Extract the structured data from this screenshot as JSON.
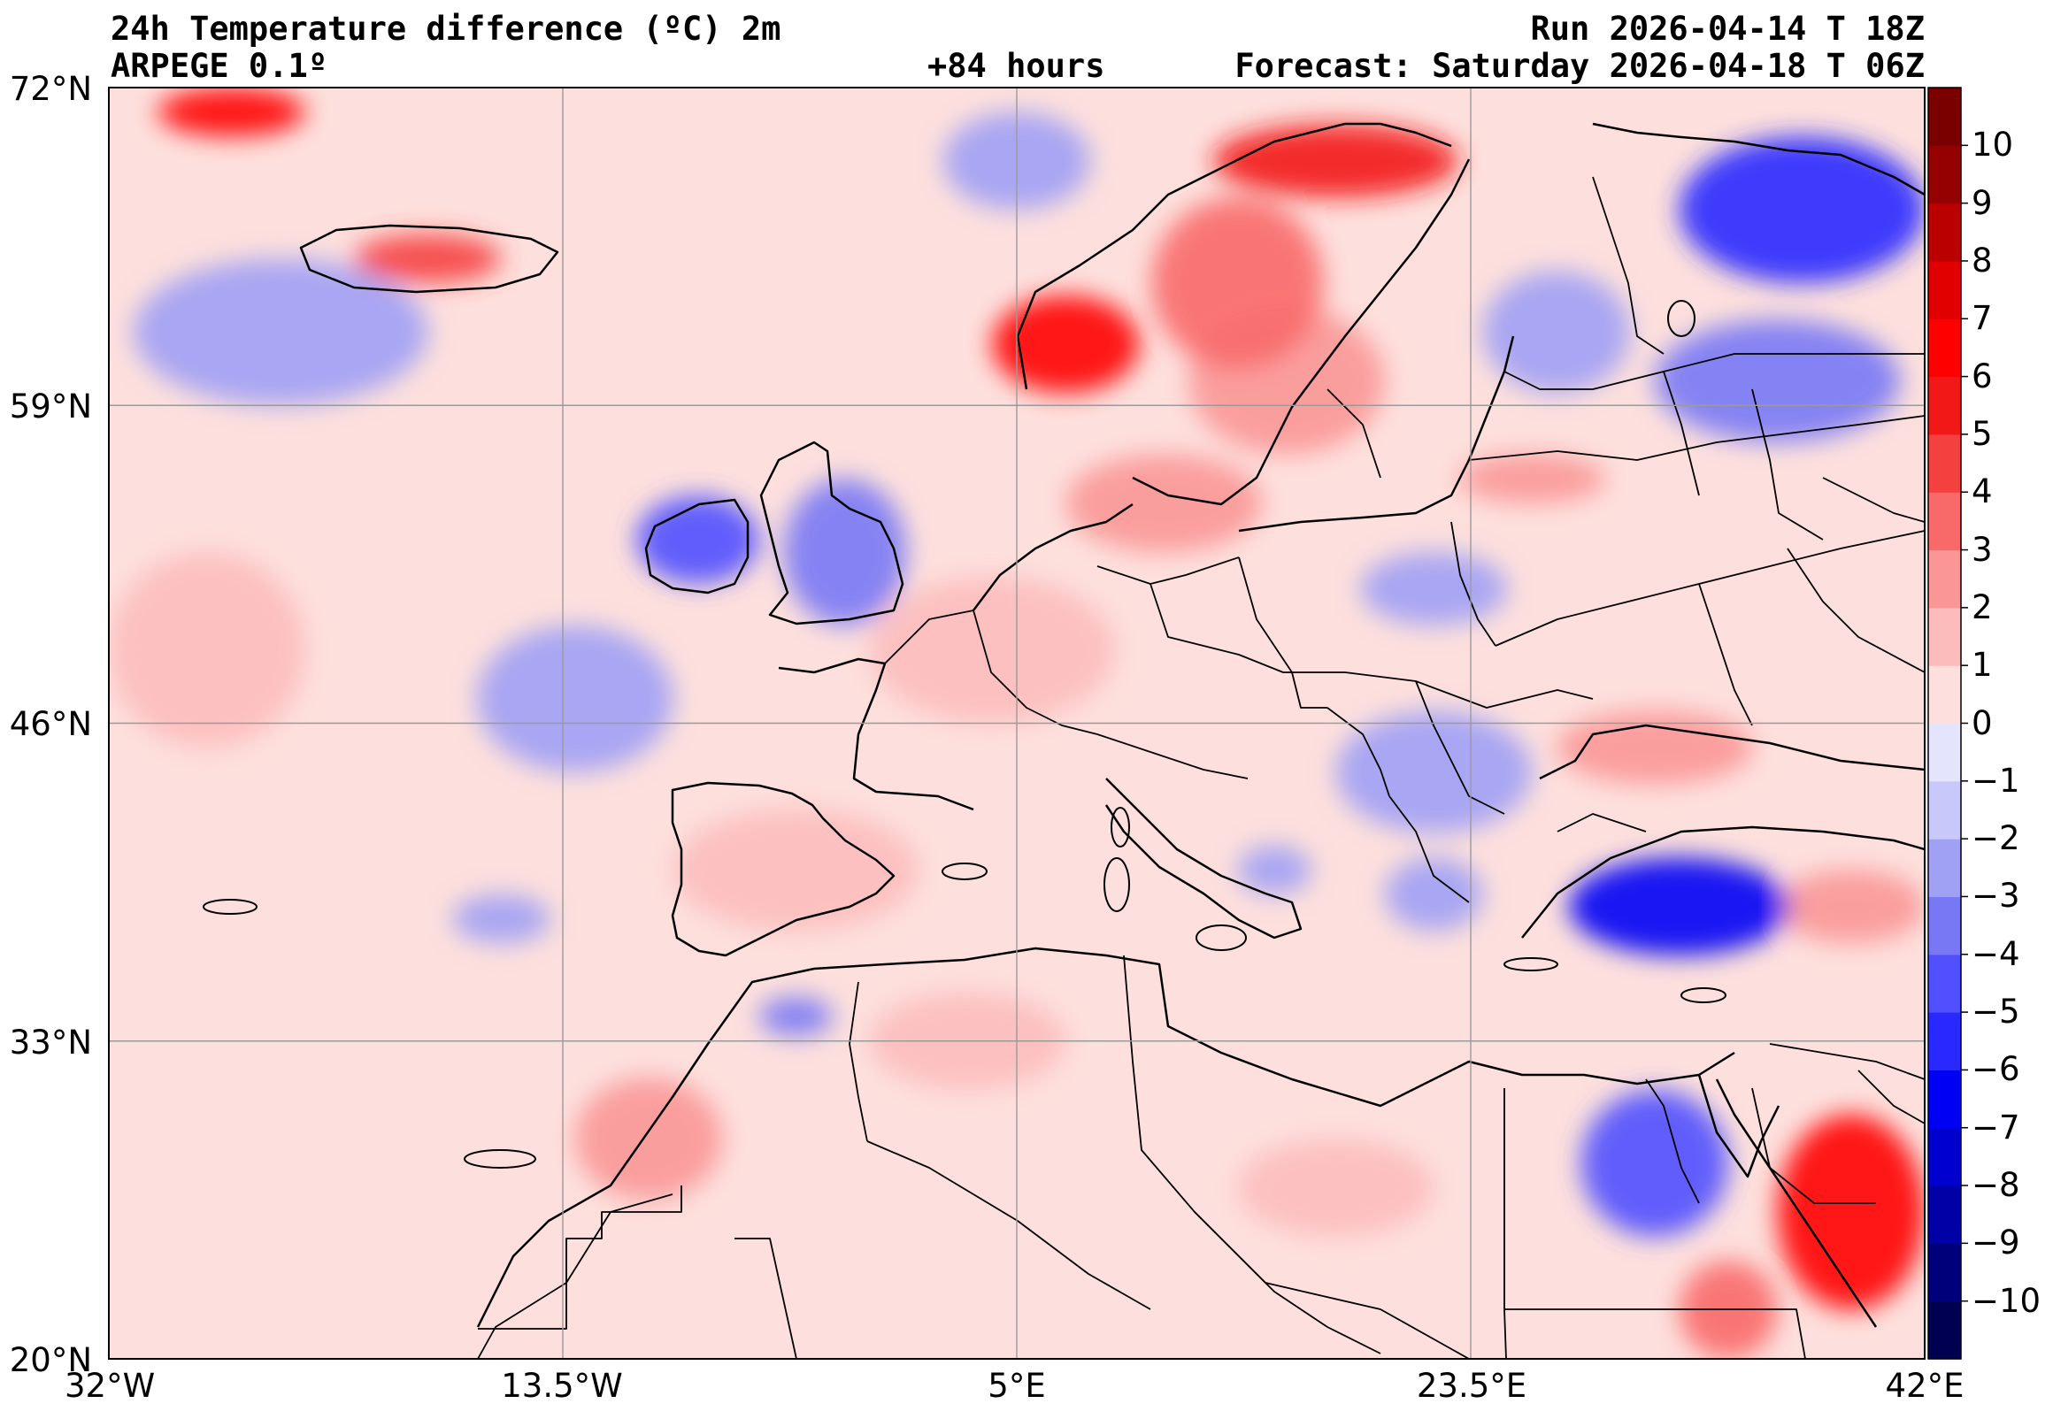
{
  "header": {
    "title": "24h Temperature difference (ºC) 2m",
    "model": "ARPEGE 0.1º",
    "lead_time": "+84 hours",
    "run": "Run 2026-04-14 T 18Z",
    "forecast": "Forecast: Saturday 2026-04-18 T 06Z"
  },
  "map": {
    "extent": {
      "lon_min": -32,
      "lon_max": 42,
      "lat_min": 20,
      "lat_max": 72
    },
    "lat_ticks": [
      {
        "value": 72,
        "label": "72°N"
      },
      {
        "value": 59,
        "label": "59°N"
      },
      {
        "value": 46,
        "label": "46°N"
      },
      {
        "value": 33,
        "label": "33°N"
      },
      {
        "value": 20,
        "label": "20°N"
      }
    ],
    "lon_ticks": [
      {
        "value": -32,
        "label": "32°W"
      },
      {
        "value": -13.5,
        "label": "13.5°W"
      },
      {
        "value": 5,
        "label": "5°E"
      },
      {
        "value": 23.5,
        "label": "23.5°E"
      },
      {
        "value": 42,
        "label": "42°E"
      }
    ],
    "gridlines": true,
    "background_color": "#fde0dd",
    "anomalies": [
      {
        "region": "Norway west coast",
        "lon": 7,
        "lat": 61.5,
        "rx": 3,
        "ry": 2,
        "level": 7
      },
      {
        "region": "Scandinavia spine",
        "lon": 14,
        "lat": 64,
        "rx": 3.5,
        "ry": 3.5,
        "level": 4
      },
      {
        "region": "Lapland",
        "lon": 18,
        "lat": 69,
        "rx": 5,
        "ry": 1.5,
        "level": 6
      },
      {
        "region": "Sweden",
        "lon": 16,
        "lat": 60,
        "rx": 4,
        "ry": 3,
        "level": 3
      },
      {
        "region": "Denmark / N Germany",
        "lon": 11,
        "lat": 55,
        "rx": 4,
        "ry": 2,
        "level": 3
      },
      {
        "region": "France / Germany band",
        "lon": 4,
        "lat": 49,
        "rx": 5,
        "ry": 3,
        "level": 2
      },
      {
        "region": "Iberia",
        "lon": -4,
        "lat": 40,
        "rx": 5,
        "ry": 2.5,
        "level": 2
      },
      {
        "region": "Morocco coast",
        "lon": -10,
        "lat": 29,
        "rx": 3,
        "ry": 2.5,
        "level": 3
      },
      {
        "region": "Algeria",
        "lon": 3,
        "lat": 33,
        "rx": 4,
        "ry": 2,
        "level": 2
      },
      {
        "region": "Libya",
        "lon": 18,
        "lat": 27,
        "rx": 4,
        "ry": 2,
        "level": 2
      },
      {
        "region": "Iceland",
        "lon": -19,
        "lat": 65,
        "rx": 3,
        "ry": 1,
        "level": 5
      },
      {
        "region": "Svalbard area",
        "lon": -27,
        "lat": 71,
        "rx": 3,
        "ry": 1,
        "level": 7
      },
      {
        "region": "Arabia",
        "lon": 39,
        "lat": 26,
        "rx": 3,
        "ry": 4,
        "level": 7
      },
      {
        "region": "Red Sea S",
        "lon": 34,
        "lat": 22,
        "rx": 2,
        "ry": 2,
        "level": 4
      },
      {
        "region": "Black Sea N",
        "lon": 31,
        "lat": 45,
        "rx": 4,
        "ry": 1.5,
        "level": 3
      },
      {
        "region": "Atlantic W",
        "lon": -28,
        "lat": 49,
        "rx": 4,
        "ry": 4,
        "level": 2
      },
      {
        "region": "Baltic states",
        "lon": 26,
        "lat": 56,
        "rx": 3,
        "ry": 1,
        "level": 3
      },
      {
        "region": "Turkey east",
        "lon": 39,
        "lat": 38.5,
        "rx": 3,
        "ry": 1.5,
        "level": 3
      },
      {
        "region": "Ireland",
        "lon": -8,
        "lat": 53.5,
        "rx": 2.5,
        "ry": 1.8,
        "level": -4
      },
      {
        "region": "Great Britain",
        "lon": -2,
        "lat": 53,
        "rx": 2.5,
        "ry": 3,
        "level": -3
      },
      {
        "region": "Atlantic NW",
        "lon": -25,
        "lat": 62,
        "rx": 6,
        "ry": 3,
        "level": -2
      },
      {
        "region": "Turkey",
        "lon": 32,
        "lat": 38.5,
        "rx": 4.5,
        "ry": 2,
        "level": -6
      },
      {
        "region": "Egypt / Sinai",
        "lon": 31,
        "lat": 28,
        "rx": 3,
        "ry": 3,
        "level": -4
      },
      {
        "region": "NW Russia",
        "lon": 37,
        "lat": 67,
        "rx": 5,
        "ry": 3,
        "level": -5
      },
      {
        "region": "Russia",
        "lon": 36,
        "lat": 60,
        "rx": 5,
        "ry": 2.5,
        "level": -3
      },
      {
        "region": "Poland",
        "lon": 22,
        "lat": 51.5,
        "rx": 3,
        "ry": 1.5,
        "level": -2
      },
      {
        "region": "Balkans",
        "lon": 22,
        "lat": 44,
        "rx": 4,
        "ry": 2.5,
        "level": -2
      },
      {
        "region": "Greece",
        "lon": 22,
        "lat": 39,
        "rx": 2,
        "ry": 1.5,
        "level": -2
      },
      {
        "region": "Italy south",
        "lon": 15.5,
        "lat": 40,
        "rx": 1.5,
        "ry": 1,
        "level": -2
      },
      {
        "region": "Atlantic central",
        "lon": -13,
        "lat": 47,
        "rx": 4,
        "ry": 3,
        "level": -2
      },
      {
        "region": "Norwegian Sea",
        "lon": 5,
        "lat": 69,
        "rx": 3,
        "ry": 2,
        "level": -2
      },
      {
        "region": "Baltic Finland",
        "lon": 27,
        "lat": 62,
        "rx": 3,
        "ry": 2.5,
        "level": -2
      },
      {
        "region": "Near Azores",
        "lon": -16,
        "lat": 38,
        "rx": 2,
        "ry": 1,
        "level": -2
      },
      {
        "region": "Algeria coast",
        "lon": -4,
        "lat": 34,
        "rx": 1.5,
        "ry": 0.8,
        "level": -3
      }
    ]
  },
  "colorbar": {
    "colors": [
      {
        "level": -10,
        "color": "#000050"
      },
      {
        "level": -9,
        "color": "#00007a"
      },
      {
        "level": -8,
        "color": "#0000a6"
      },
      {
        "level": -7,
        "color": "#0000cf"
      },
      {
        "level": -6,
        "color": "#0000f5"
      },
      {
        "level": -5,
        "color": "#2828ff"
      },
      {
        "level": -4,
        "color": "#5050ff"
      },
      {
        "level": -3,
        "color": "#7878f5"
      },
      {
        "level": -2,
        "color": "#a0a0f5"
      },
      {
        "level": -1,
        "color": "#c8c8fa"
      },
      {
        "level": 0,
        "color": "#e4e4fc"
      },
      {
        "level": 1,
        "color": "#fde0dd"
      },
      {
        "level": 2,
        "color": "#fcbcbc"
      },
      {
        "level": 3,
        "color": "#fa9696"
      },
      {
        "level": 4,
        "color": "#f86a6a"
      },
      {
        "level": 5,
        "color": "#f54040"
      },
      {
        "level": 6,
        "color": "#f21818"
      },
      {
        "level": 7,
        "color": "#ff0000"
      },
      {
        "level": 8,
        "color": "#e00000"
      },
      {
        "level": 9,
        "color": "#bb0000"
      },
      {
        "level": 10,
        "color": "#950000"
      },
      {
        "level": 11,
        "color": "#7a0000"
      }
    ],
    "labels": [
      "10",
      "9",
      "8",
      "7",
      "6",
      "5",
      "4",
      "3",
      "2",
      "1",
      "0",
      "−1",
      "−2",
      "−3",
      "−4",
      "−5",
      "−6",
      "−7",
      "−8",
      "−9",
      "−10"
    ],
    "label_values": [
      10,
      9,
      8,
      7,
      6,
      5,
      4,
      3,
      2,
      1,
      0,
      -1,
      -2,
      -3,
      -4,
      -5,
      -6,
      -7,
      -8,
      -9,
      -10
    ],
    "range": [
      -11,
      11
    ]
  }
}
